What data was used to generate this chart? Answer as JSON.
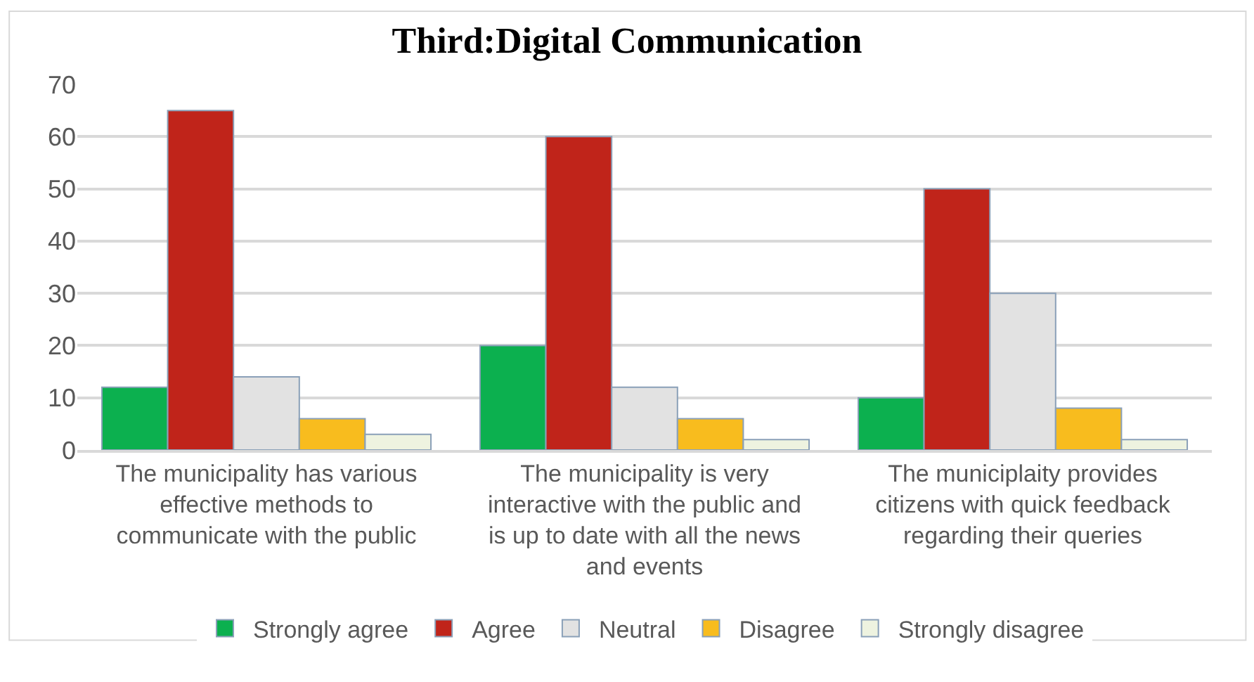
{
  "chart_data": {
    "type": "bar",
    "title": "Third:Digital Communication",
    "categories": [
      "The municipality has various effective methods to communicate with the public",
      "The municipality is very interactive with the public and is up to date with all the news and events",
      "The municiplaity provides citizens with quick feedback regarding their queries"
    ],
    "series": [
      {
        "name": "Strongly agree",
        "color": "#0cb04f",
        "values": [
          12,
          20,
          10
        ]
      },
      {
        "name": "Agree",
        "color": "#c0241a",
        "values": [
          65,
          60,
          50
        ]
      },
      {
        "name": "Neutral",
        "color": "#e2e2e2",
        "values": [
          14,
          12,
          30
        ]
      },
      {
        "name": "Disagree",
        "color": "#f8bc1e",
        "values": [
          6,
          6,
          8
        ]
      },
      {
        "name": "Strongly disagree",
        "color": "#eef3e0",
        "values": [
          3,
          2,
          2
        ]
      }
    ],
    "ylim": [
      0,
      70
    ],
    "yticks": [
      0,
      10,
      20,
      30,
      40,
      50,
      60,
      70
    ],
    "grid": "y",
    "legend": "bottom"
  }
}
